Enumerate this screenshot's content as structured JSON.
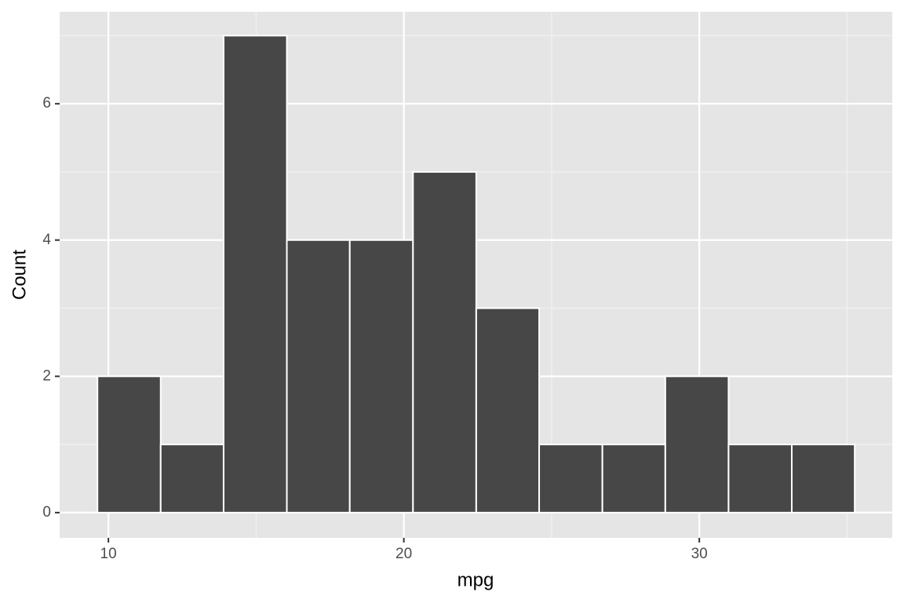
{
  "chart_data": {
    "type": "histogram",
    "x_label": "mpg",
    "y_label": "Count",
    "bins": [
      9.63,
      11.77,
      13.9,
      16.04,
      18.17,
      20.31,
      22.45,
      24.58,
      26.72,
      28.85,
      30.99,
      33.13,
      35.26
    ],
    "counts": [
      2,
      1,
      7,
      4,
      4,
      5,
      3,
      1,
      1,
      2,
      1,
      1
    ],
    "color": "#474747",
    "xlim": [
      8.35,
      36.53
    ],
    "xticks": [
      10,
      20,
      30
    ],
    "ylim": [
      -0.37,
      7.35
    ],
    "yticks": [
      0,
      2,
      4,
      6
    ],
    "grid": true
  }
}
